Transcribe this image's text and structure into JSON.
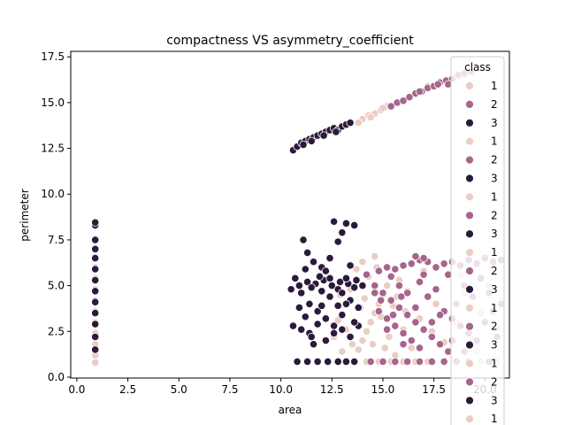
{
  "chart_data": {
    "type": "scatter",
    "title": "compactness VS asymmetry_coefficient",
    "xlabel": "area",
    "ylabel": "perimeter",
    "xlim": [
      -0.3,
      21.2
    ],
    "ylim": [
      -0.05,
      17.8
    ],
    "xticks": [
      0.0,
      2.5,
      5.0,
      7.5,
      10.0,
      12.5,
      15.0,
      17.5,
      20.0
    ],
    "xtick_labels": [
      "0.0",
      "2.5",
      "5.0",
      "7.5",
      "10.0",
      "12.5",
      "15.0",
      "17.5",
      "20.0"
    ],
    "yticks": [
      0.0,
      2.5,
      5.0,
      7.5,
      10.0,
      12.5,
      15.0,
      17.5
    ],
    "ytick_labels": [
      "0.0",
      "2.5",
      "5.0",
      "7.5",
      "10.0",
      "12.5",
      "15.0",
      "17.5"
    ],
    "grid": false,
    "legend": {
      "title": "class",
      "placement": "top-right",
      "entries": [
        {
          "label": "1",
          "color": "#ebcdc6"
        },
        {
          "label": "2",
          "color": "#a7648c"
        },
        {
          "label": "3",
          "color": "#2b1a3c"
        },
        {
          "label": "1",
          "color": "#ebcdc6"
        },
        {
          "label": "2",
          "color": "#a7648c"
        },
        {
          "label": "3",
          "color": "#2b1a3c"
        },
        {
          "label": "1",
          "color": "#ebcdc6"
        },
        {
          "label": "2",
          "color": "#a7648c"
        },
        {
          "label": "3",
          "color": "#2b1a3c"
        },
        {
          "label": "1",
          "color": "#ebcdc6"
        },
        {
          "label": "2",
          "color": "#a7648c"
        },
        {
          "label": "3",
          "color": "#2b1a3c"
        },
        {
          "label": "1",
          "color": "#ebcdc6"
        },
        {
          "label": "2",
          "color": "#a7648c"
        },
        {
          "label": "3",
          "color": "#2b1a3c"
        },
        {
          "label": "1",
          "color": "#ebcdc6"
        },
        {
          "label": "2",
          "color": "#a7648c"
        },
        {
          "label": "3",
          "color": "#2b1a3c"
        },
        {
          "label": "1",
          "color": "#ebcdc6"
        }
      ]
    },
    "series": [
      {
        "name": "1",
        "color": "#ebcdc6",
        "points": [
          [
            0.9,
            0.8
          ],
          [
            0.9,
            1.2
          ],
          [
            0.9,
            1.8
          ],
          [
            0.9,
            2.4
          ],
          [
            0.9,
            3.0
          ],
          [
            0.9,
            3.6
          ],
          [
            0.9,
            4.2
          ],
          [
            0.9,
            4.8
          ],
          [
            0.9,
            5.4
          ],
          [
            0.9,
            6.0
          ],
          [
            14.0,
            14.1
          ],
          [
            14.3,
            14.3
          ],
          [
            14.6,
            14.4
          ],
          [
            14.9,
            14.6
          ],
          [
            15.2,
            14.8
          ],
          [
            13.8,
            13.9
          ],
          [
            14.4,
            14.2
          ],
          [
            15.0,
            14.7
          ],
          [
            18.6,
            16.4
          ],
          [
            19.0,
            16.5
          ],
          [
            19.4,
            16.6
          ],
          [
            17.2,
            15.9
          ],
          [
            13.6,
            0.85
          ],
          [
            14.2,
            0.85
          ],
          [
            14.8,
            0.85
          ],
          [
            15.4,
            0.85
          ],
          [
            16.0,
            0.85
          ],
          [
            16.6,
            0.85
          ],
          [
            17.2,
            0.85
          ],
          [
            19.8,
            0.85
          ],
          [
            20.6,
            0.85
          ],
          [
            13.8,
            1.5
          ],
          [
            14.0,
            2.0
          ],
          [
            14.2,
            2.5
          ],
          [
            14.4,
            3.0
          ],
          [
            14.6,
            3.5
          ],
          [
            14.8,
            4.0
          ],
          [
            15.0,
            4.5
          ],
          [
            15.2,
            5.0
          ],
          [
            14.3,
            5.5
          ],
          [
            14.7,
            6.0
          ],
          [
            13.9,
            3.8
          ],
          [
            14.5,
            1.8
          ],
          [
            15.3,
            2.2
          ],
          [
            15.6,
            1.2
          ],
          [
            16.0,
            2.6
          ],
          [
            14.1,
            4.3
          ],
          [
            14.9,
            3.3
          ],
          [
            15.5,
            3.9
          ],
          [
            16.2,
            4.7
          ],
          [
            14.6,
            6.6
          ],
          [
            13.5,
            1.8
          ],
          [
            13.2,
            2.6
          ],
          [
            12.8,
            3.1
          ],
          [
            13.0,
            1.4
          ],
          [
            15.8,
            5.3
          ],
          [
            16.4,
            1.6
          ],
          [
            17.0,
            5.8
          ],
          [
            17.6,
            4.0
          ],
          [
            18.0,
            1.9
          ],
          [
            18.6,
            3.0
          ],
          [
            19.0,
            4.6
          ],
          [
            19.4,
            2.1
          ],
          [
            19.8,
            3.5
          ],
          [
            20.2,
            5.0
          ],
          [
            20.6,
            2.7
          ],
          [
            19.6,
            1.4
          ],
          [
            18.8,
            5.6
          ],
          [
            20.4,
            6.2
          ],
          [
            17.4,
            2.5
          ],
          [
            16.8,
            3.2
          ],
          [
            13.4,
            4.8
          ],
          [
            12.6,
            2.2
          ],
          [
            12.9,
            4.5
          ],
          [
            14.0,
            6.3
          ],
          [
            15.1,
            1.6
          ],
          [
            16.1,
            3.6
          ],
          [
            20.8,
            4.2
          ],
          [
            20.0,
            6.5
          ],
          [
            13.7,
            5.9
          ],
          [
            15.7,
            4.4
          ]
        ]
      },
      {
        "name": "2",
        "color": "#a7648c",
        "points": [
          [
            15.4,
            14.8
          ],
          [
            15.7,
            15.0
          ],
          [
            16.0,
            15.1
          ],
          [
            16.3,
            15.3
          ],
          [
            16.6,
            15.5
          ],
          [
            16.9,
            15.6
          ],
          [
            17.2,
            15.8
          ],
          [
            17.5,
            15.9
          ],
          [
            17.8,
            16.1
          ],
          [
            18.1,
            16.2
          ],
          [
            18.4,
            16.3
          ],
          [
            18.7,
            16.5
          ],
          [
            19.0,
            16.6
          ],
          [
            19.3,
            16.7
          ],
          [
            16.8,
            15.6
          ],
          [
            17.7,
            16.0
          ],
          [
            18.2,
            16.0
          ],
          [
            14.4,
            0.85
          ],
          [
            15.0,
            0.85
          ],
          [
            15.6,
            0.85
          ],
          [
            16.2,
            0.85
          ],
          [
            16.8,
            0.85
          ],
          [
            17.4,
            0.85
          ],
          [
            18.0,
            0.85
          ],
          [
            18.6,
            0.85
          ],
          [
            19.2,
            0.85
          ],
          [
            20.2,
            0.85
          ],
          [
            14.2,
            5.6
          ],
          [
            14.8,
            5.8
          ],
          [
            15.2,
            6.0
          ],
          [
            15.6,
            5.9
          ],
          [
            16.0,
            6.1
          ],
          [
            16.4,
            6.2
          ],
          [
            16.8,
            6.4
          ],
          [
            17.2,
            6.3
          ],
          [
            17.6,
            6.0
          ],
          [
            18.0,
            6.2
          ],
          [
            18.4,
            6.3
          ],
          [
            18.8,
            6.1
          ],
          [
            19.2,
            6.4
          ],
          [
            19.6,
            6.2
          ],
          [
            20.0,
            6.5
          ],
          [
            20.4,
            6.3
          ],
          [
            20.8,
            6.4
          ],
          [
            16.6,
            6.6
          ],
          [
            17.0,
            6.5
          ],
          [
            15.4,
            5.5
          ],
          [
            14.6,
            5.0
          ],
          [
            15.0,
            4.6
          ],
          [
            15.4,
            4.2
          ],
          [
            15.8,
            3.8
          ],
          [
            16.2,
            3.4
          ],
          [
            16.6,
            3.0
          ],
          [
            17.0,
            2.6
          ],
          [
            17.4,
            2.2
          ],
          [
            17.8,
            1.8
          ],
          [
            18.2,
            1.4
          ],
          [
            14.8,
            3.6
          ],
          [
            15.2,
            3.2
          ],
          [
            15.6,
            2.8
          ],
          [
            16.0,
            2.4
          ],
          [
            16.4,
            2.0
          ],
          [
            16.8,
            1.6
          ],
          [
            17.2,
            4.4
          ],
          [
            17.6,
            4.8
          ],
          [
            18.0,
            3.6
          ],
          [
            18.4,
            3.2
          ],
          [
            18.8,
            2.8
          ],
          [
            19.2,
            2.4
          ],
          [
            19.6,
            2.0
          ],
          [
            20.0,
            3.0
          ],
          [
            20.4,
            3.6
          ],
          [
            20.8,
            4.0
          ],
          [
            19.4,
            4.4
          ],
          [
            18.6,
            4.0
          ],
          [
            17.8,
            3.4
          ],
          [
            16.8,
            5.2
          ],
          [
            16.2,
            4.6
          ],
          [
            15.8,
            5.0
          ],
          [
            14.9,
            4.2
          ],
          [
            15.5,
            3.4
          ],
          [
            16.6,
            3.8
          ],
          [
            17.4,
            3.0
          ],
          [
            19.0,
            5.0
          ],
          [
            20.2,
            4.6
          ],
          [
            19.8,
            5.4
          ],
          [
            18.2,
            5.6
          ],
          [
            17.0,
            5.6
          ],
          [
            16.0,
            1.8
          ],
          [
            15.2,
            2.6
          ],
          [
            19.0,
            1.4
          ],
          [
            20.6,
            2.2
          ],
          [
            18.4,
            2.0
          ],
          [
            14.6,
            4.6
          ],
          [
            15.9,
            4.4
          ]
        ]
      },
      {
        "name": "3",
        "color": "#2b1a3c",
        "points": [
          [
            10.6,
            12.4
          ],
          [
            10.8,
            12.6
          ],
          [
            11.0,
            12.8
          ],
          [
            11.2,
            12.9
          ],
          [
            11.4,
            13.0
          ],
          [
            11.6,
            13.1
          ],
          [
            11.8,
            13.2
          ],
          [
            12.0,
            13.3
          ],
          [
            12.2,
            13.4
          ],
          [
            12.4,
            13.5
          ],
          [
            12.6,
            13.6
          ],
          [
            12.8,
            13.5
          ],
          [
            13.0,
            13.7
          ],
          [
            13.2,
            13.8
          ],
          [
            13.4,
            13.9
          ],
          [
            11.1,
            12.7
          ],
          [
            11.5,
            12.9
          ],
          [
            12.1,
            13.2
          ],
          [
            12.7,
            13.4
          ],
          [
            0.9,
            1.5
          ],
          [
            0.9,
            2.2
          ],
          [
            0.9,
            2.9
          ],
          [
            0.9,
            3.5
          ],
          [
            0.9,
            4.1
          ],
          [
            0.9,
            4.7
          ],
          [
            0.9,
            5.3
          ],
          [
            0.9,
            5.9
          ],
          [
            0.9,
            6.5
          ],
          [
            0.9,
            7.0
          ],
          [
            0.9,
            7.5
          ],
          [
            0.9,
            8.3
          ],
          [
            0.9,
            8.45
          ],
          [
            10.8,
            0.85
          ],
          [
            11.3,
            0.85
          ],
          [
            11.8,
            0.85
          ],
          [
            12.3,
            0.85
          ],
          [
            12.8,
            0.85
          ],
          [
            13.2,
            0.85
          ],
          [
            13.6,
            0.85
          ],
          [
            10.5,
            4.8
          ],
          [
            10.9,
            5.0
          ],
          [
            11.3,
            5.2
          ],
          [
            11.7,
            5.1
          ],
          [
            12.1,
            5.3
          ],
          [
            12.5,
            5.0
          ],
          [
            12.9,
            5.2
          ],
          [
            13.3,
            5.1
          ],
          [
            13.7,
            5.3
          ],
          [
            14.0,
            5.0
          ],
          [
            11.0,
            4.6
          ],
          [
            11.5,
            4.9
          ],
          [
            12.0,
            4.7
          ],
          [
            12.4,
            5.4
          ],
          [
            12.8,
            4.8
          ],
          [
            13.2,
            5.4
          ],
          [
            13.6,
            4.9
          ],
          [
            10.7,
            5.4
          ],
          [
            11.9,
            5.5
          ],
          [
            13.0,
            4.6
          ],
          [
            11.1,
            7.5
          ],
          [
            11.3,
            6.8
          ],
          [
            11.6,
            6.3
          ],
          [
            12.0,
            6.0
          ],
          [
            12.4,
            6.5
          ],
          [
            12.8,
            7.4
          ],
          [
            12.6,
            8.5
          ],
          [
            13.2,
            8.4
          ],
          [
            13.6,
            8.3
          ],
          [
            13.0,
            7.9
          ],
          [
            11.2,
            5.9
          ],
          [
            12.2,
            5.8
          ],
          [
            13.4,
            6.1
          ],
          [
            11.4,
            4.0
          ],
          [
            11.8,
            3.6
          ],
          [
            12.2,
            3.2
          ],
          [
            12.6,
            2.8
          ],
          [
            13.0,
            3.4
          ],
          [
            13.4,
            4.2
          ],
          [
            13.8,
            3.8
          ],
          [
            10.6,
            2.8
          ],
          [
            11.0,
            2.6
          ],
          [
            11.4,
            2.4
          ],
          [
            11.8,
            2.9
          ],
          [
            12.2,
            2.0
          ],
          [
            12.6,
            2.4
          ],
          [
            13.0,
            2.6
          ],
          [
            13.4,
            2.2
          ],
          [
            13.8,
            2.8
          ],
          [
            11.6,
            1.8
          ],
          [
            12.4,
            4.4
          ],
          [
            13.2,
            4.0
          ],
          [
            12.0,
            3.9
          ],
          [
            11.2,
            3.3
          ],
          [
            10.9,
            3.8
          ],
          [
            13.6,
            3.0
          ],
          [
            12.8,
            3.9
          ],
          [
            11.5,
            2.2
          ]
        ]
      }
    ]
  }
}
